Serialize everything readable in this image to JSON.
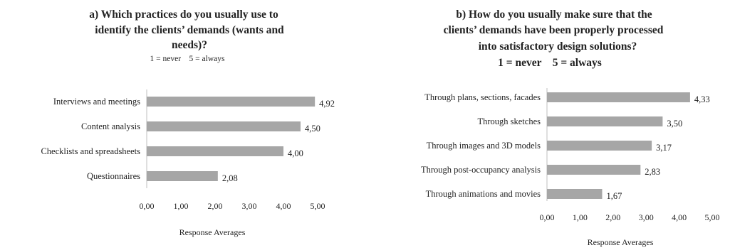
{
  "chart_data": [
    {
      "type": "bar",
      "orientation": "horizontal",
      "title_lines": [
        "a) Which practices do you usually use to",
        "identify the clients’ demands (wants and",
        "needs)?"
      ],
      "subtitle": "1 = never    5 = always",
      "categories": [
        "Interviews and meetings",
        "Content analysis",
        "Checklists and spreadsheets",
        "Questionnaires"
      ],
      "values": [
        4.92,
        4.5,
        4.0,
        2.08
      ],
      "value_labels": [
        "4,92",
        "4,50",
        "4,00",
        "2,08"
      ],
      "xlabel": "Response Averages",
      "xlim": [
        0,
        5
      ],
      "xticks": [
        "0,00",
        "1,00",
        "2,00",
        "3,00",
        "4,00",
        "5,00"
      ],
      "bar_color": "#a6a6a6",
      "grid": false
    },
    {
      "type": "bar",
      "orientation": "horizontal",
      "title_lines": [
        "b) How do you usually make sure that the",
        "clients’ demands have been properly processed",
        "into satisfactory design solutions?"
      ],
      "subtitle": "1 = never    5 = always",
      "categories": [
        "Through plans, sections, facades",
        "Through sketches",
        "Through images and 3D models",
        "Through post-occupancy analysis",
        "Through animations and movies"
      ],
      "values": [
        4.33,
        3.5,
        3.17,
        2.83,
        1.67
      ],
      "value_labels": [
        "4,33",
        "3,50",
        "3,17",
        "2,83",
        "1,67"
      ],
      "xlabel": "Response Averages",
      "xlim": [
        0,
        5
      ],
      "xticks": [
        "0,00",
        "1,00",
        "2,00",
        "3,00",
        "4,00",
        "5,00"
      ],
      "bar_color": "#a6a6a6",
      "grid": false
    }
  ]
}
